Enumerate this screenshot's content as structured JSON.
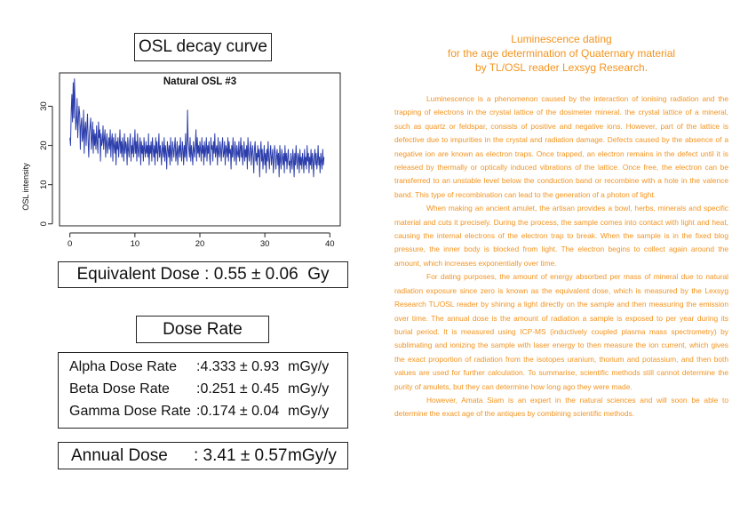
{
  "left": {
    "osl_title": "OSL decay curve",
    "equivalent_dose": {
      "label": "Equivalent Dose",
      "value": ": 0.55 ± 0.06",
      "unit": "Gy"
    },
    "dose_rate_title": "Dose Rate",
    "dose_rates": [
      {
        "label": "Alpha Dose Rate",
        "value": ":4.333 ± 0.93",
        "unit": "mGy/y"
      },
      {
        "label": "Beta Dose Rate",
        "value": ":0.251 ± 0.45",
        "unit": "mGy/y"
      },
      {
        "label": "Gamma Dose Rate",
        "value": ":0.174 ± 0.04",
        "unit": "mGy/y"
      }
    ],
    "annual_dose": {
      "label": "Annual Dose",
      "value": ": 3.41 ± 0.57",
      "unit": "mGy/y"
    }
  },
  "chart_data": {
    "type": "line",
    "title": "Natural OSL #3",
    "xlabel": "",
    "ylabel": "OSL intensity",
    "xlim": [
      -1.6,
      41.6
    ],
    "ylim": [
      -0.5,
      38.5
    ],
    "xticks": [
      0,
      10,
      20,
      30,
      40
    ],
    "yticks": [
      0,
      10,
      20,
      30
    ],
    "grid": false,
    "color": "#2b3dab",
    "series": [
      {
        "x_start": 0,
        "x_step": 0.1,
        "values": [
          22,
          20,
          29,
          33,
          26,
          36,
          27,
          37,
          30,
          24,
          26,
          32,
          22,
          26,
          30,
          28,
          19,
          25,
          27,
          21,
          22,
          29,
          18,
          24,
          26,
          20,
          24,
          28,
          21,
          17,
          23,
          25,
          27,
          19,
          22,
          26,
          18,
          24,
          20,
          23,
          19,
          25,
          21,
          18,
          26,
          22,
          24,
          16,
          23,
          20,
          21,
          25,
          19,
          22,
          24,
          17,
          21,
          23,
          18,
          20,
          22,
          19,
          24,
          17,
          21,
          23,
          16,
          22,
          20,
          18,
          23,
          15,
          21,
          19,
          22,
          17,
          20,
          24,
          18,
          21,
          17,
          22,
          19,
          16,
          23,
          18,
          21,
          20,
          15,
          22,
          19,
          17,
          21,
          23,
          16,
          20,
          18,
          22,
          17,
          19,
          24,
          18,
          21,
          16,
          23,
          19,
          17,
          20,
          22,
          15,
          21,
          18,
          20,
          16,
          22,
          19,
          17,
          21,
          18,
          20,
          17,
          23,
          15,
          20,
          18,
          21,
          16,
          22,
          19,
          17,
          20,
          15,
          22,
          18,
          21,
          16,
          19,
          23,
          17,
          20,
          18,
          15,
          21,
          19,
          17,
          22,
          16,
          20,
          18,
          14,
          21,
          19,
          17,
          20,
          15,
          22,
          18,
          16,
          21,
          19,
          17,
          20,
          22,
          16,
          18,
          21,
          15,
          19,
          20,
          17,
          22,
          18,
          16,
          21,
          19,
          15,
          20,
          17,
          23,
          18,
          16,
          29,
          21,
          19,
          17,
          22,
          16,
          20,
          18,
          15,
          21,
          19,
          17,
          20,
          24,
          16,
          22,
          18,
          20,
          17,
          21,
          19,
          16,
          22,
          18,
          20,
          15,
          21,
          17,
          19,
          22,
          16,
          20,
          18,
          21,
          17,
          15,
          22,
          19,
          20,
          16,
          21,
          18,
          23,
          17,
          19,
          20,
          15,
          22,
          18,
          17,
          21,
          19,
          16,
          20,
          22,
          17,
          18,
          21,
          15,
          20,
          19,
          17,
          22,
          16,
          21,
          18,
          19,
          14,
          20,
          17,
          22,
          18,
          16,
          21,
          19,
          15,
          20,
          18,
          17,
          21,
          16,
          19,
          22,
          17,
          20,
          15,
          18,
          21,
          16,
          19,
          17,
          20,
          14,
          22,
          18,
          16,
          19,
          21,
          15,
          18,
          20,
          17,
          13,
          19,
          21,
          16,
          18,
          15,
          20,
          17,
          19,
          12,
          18,
          21,
          16,
          19,
          14,
          17,
          20,
          15,
          18,
          13,
          19,
          16,
          21,
          17,
          14,
          18,
          20,
          15,
          17,
          19,
          13,
          16,
          20,
          18,
          14,
          17,
          19,
          15,
          18,
          12,
          20,
          16,
          14,
          19,
          17,
          15,
          18,
          13,
          20,
          16,
          18,
          14,
          17,
          19,
          15,
          16,
          13,
          18,
          16,
          14,
          19,
          17,
          12,
          18,
          15,
          20,
          16,
          14,
          18,
          17,
          13,
          19,
          15,
          17,
          14,
          18,
          16,
          13,
          19,
          15,
          17,
          14,
          20,
          16,
          18,
          13,
          17,
          15,
          19,
          14,
          18,
          16,
          12,
          17,
          19,
          15,
          18,
          14,
          16,
          20,
          15,
          17,
          13,
          18,
          16,
          14,
          19,
          15,
          17
        ]
      }
    ]
  },
  "article": {
    "title_lines": [
      "Luminescence dating",
      "for the age determination of Quaternary material",
      "by TL/OSL reader Lexsyg Research."
    ],
    "paragraphs": [
      "Luminescence is a phenomenon caused by the interaction of ionising radiation and the trapping of electrons in the crystal lattice of the dosimeter mineral. the crystal lattice of a mineral, such as quartz or feldspar, consists of positive and negative ions. However, part of the lattice is defective due to impurities in the crystal and radiation damage. Defects caused by the absence of a negative ion are known as electron traps. Once trapped, an electron remains in the defect until it is released by thermally or optically induced vibrations of the lattice. Once free, the electron can be transferred to an unstable level below the conduction band or recombine with a hole in the valence band. This type of recombination can lead to the generation of a photon of light.",
      "When making an ancient amulet, the artisan provides a bowl, herbs, minerals and specific material and cuts it precisely. During the process, the sample comes into contact with light and heat, causing the internal electrons of the electron trap to break. When the sample is in the fixed blog pressure, the inner body is blocked from light. The electron begins to collect again around the amount, which increases exponentially over time.",
      "For dating purposes, the amount of energy absorbed per mass of mineral due to natural radiation exposure since zero is known as the equivalent dose, which is measured by the Lexsyg Research TL/OSL reader by shining a light directly on the sample and then measuring the emission over time. The annual dose is the amount of radiation a sample is exposed to per year during its burial period. It is measured using ICP-MS (inductively coupled plasma mass spectrometry) by sublimating and ionizing the sample with laser energy to then measure the ion current, which gives the exact proportion of radiation from the isotopes uranium, thorium and potassium, and then both values are used for further calculation. To summarise, scientific methods still cannot determine the purity of amulets, but they can determine how long ago they were made.",
      "However, Amata Siam is an expert in the natural sciences and will soon be able to determine the exact age of the antiques by combining scientific methods."
    ]
  }
}
